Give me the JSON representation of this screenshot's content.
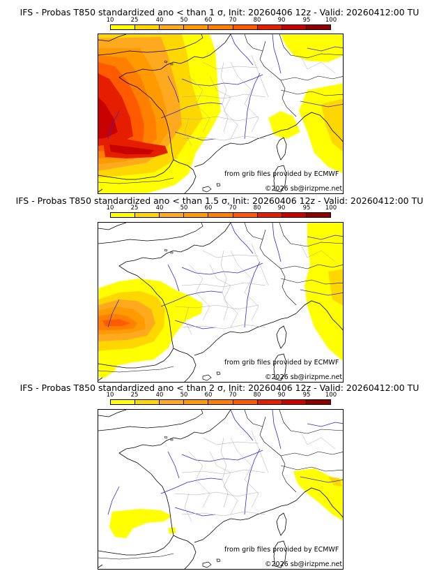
{
  "colorbar": {
    "labels": [
      "10",
      "25",
      "40",
      "50",
      "60",
      "70",
      "80",
      "90",
      "95",
      "100"
    ],
    "colors": [
      "#ffff00",
      "#ffd700",
      "#ffaa1e",
      "#ff9a00",
      "#ff8000",
      "#ff5a00",
      "#e61e00",
      "#c80000",
      "#8c0000",
      "#500000"
    ]
  },
  "panels": [
    {
      "title": "IFS - Probas T850  standardized ano < than 1 σ, Init: 20260406 12z - Valid: 20260412:00 TU",
      "credit_source": "from grib files provided by ECMWF",
      "credit_copyright": "©2026 sb@irizpme.net"
    },
    {
      "title": "IFS - Probas T850  standardized ano < than 1.5 σ, Init: 20260406 12z - Valid: 20260412:00 TU",
      "credit_source": "from grib files provided by ECMWF",
      "credit_copyright": "©2026 sb@irizpme.net"
    },
    {
      "title": "IFS - Probas T850  standardized ano < than 2 σ, Init: 20260406 12z - Valid: 20260412:00 TU",
      "credit_source": "from grib files provided by ECMWF",
      "credit_copyright": "©2026 sb@irizpme.net"
    }
  ]
}
